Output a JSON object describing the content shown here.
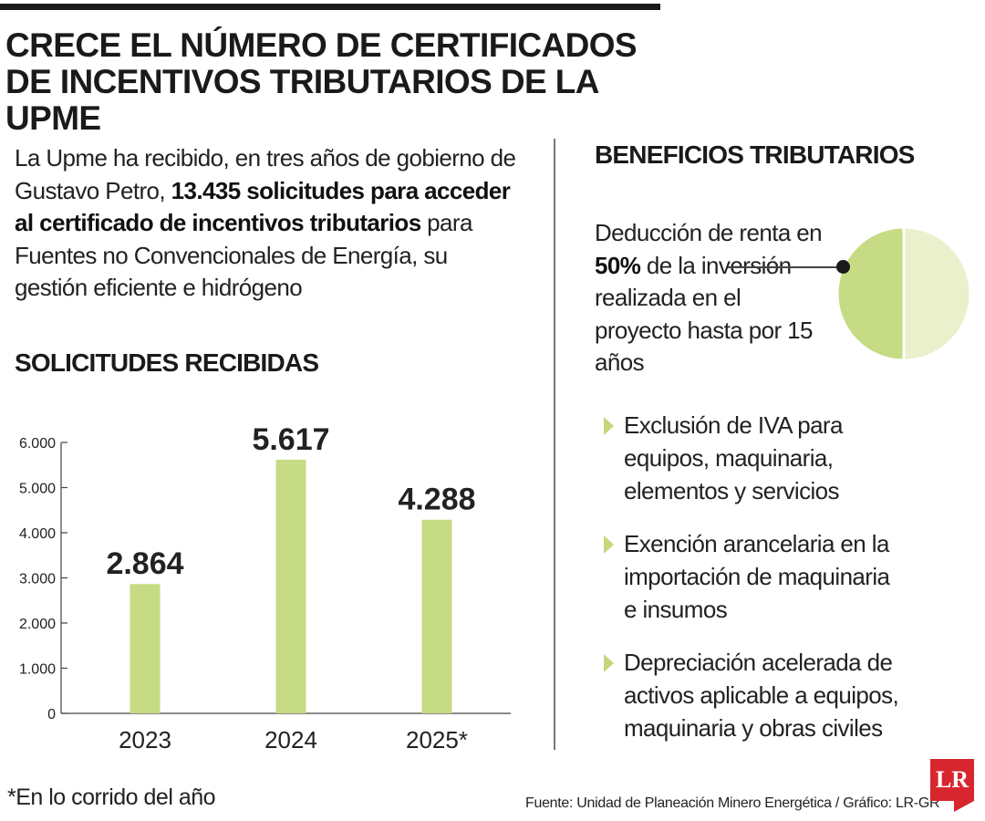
{
  "header": {
    "title_line1": "CRECE EL NÚMERO DE CERTIFICADOS",
    "title_line2": "DE INCENTIVOS TRIBUTARIOS DE LA UPME"
  },
  "intro": {
    "part1": "La Upme ha recibido, en tres años de gobierno de Gustavo Petro, ",
    "bold": "13.435 solicitudes para acceder al certificado de incentivos tributarios",
    "part2": " para Fuentes no Convencionales de Energía, su gestión eficiente e hidrógeno"
  },
  "left_section": {
    "heading": "SOLICITUDES RECIBIDAS"
  },
  "chart_data": {
    "type": "bar",
    "title": "SOLICITUDES RECIBIDAS",
    "categories": [
      "2023",
      "2024",
      "2025*"
    ],
    "values": [
      2864,
      5617,
      4288
    ],
    "value_labels": [
      "2.864",
      "5.617",
      "4.288"
    ],
    "yticks": [
      0,
      1000,
      2000,
      3000,
      4000,
      5000,
      6000
    ],
    "ytick_labels": [
      "0",
      "1.000",
      "2.000",
      "3.000",
      "4.000",
      "5.000",
      "6.000"
    ],
    "ylim": [
      0,
      6000
    ],
    "xlabel": "",
    "ylabel": "",
    "grid": false,
    "bar_color": "#c6db84"
  },
  "right_section": {
    "heading": "BENEFICIOS TRIBUTARIOS",
    "deduccion": {
      "pre": "Deducción de renta en ",
      "bold": "50%",
      "post": " de la inversión realizada en el proyecto hasta por 15 años"
    },
    "pie": {
      "share_percent": 50,
      "highlight_color": "#c6db84",
      "rest_color": "#e9f0cb"
    },
    "benefits": [
      "Exclusión de IVA para equipos, maquinaria, elementos y servicios",
      "Exención arancelaria en la importación de maquinaria e insumos",
      "Depreciación acelerada de activos aplicable a equipos, maquinaria y obras civiles"
    ]
  },
  "footer": {
    "footnote": "*En lo corrido del año",
    "source": "Fuente: Unidad de Planeación Minero Energética / Gráfico: LR-GR",
    "logo_text": "LR"
  },
  "colors": {
    "accent": "#c6db84",
    "logo_red": "#d8262e"
  }
}
